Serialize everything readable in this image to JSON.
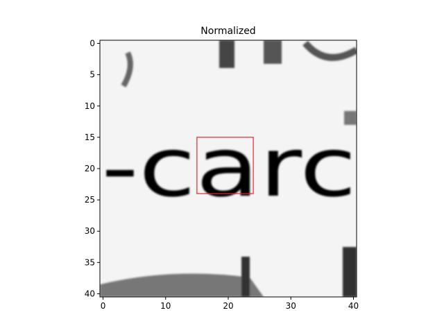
{
  "chart_data": {
    "type": "heatmap",
    "title": "Normalized",
    "colormap": "gray",
    "xlabel": "",
    "ylabel": "",
    "xlim": [
      -0.5,
      40.5
    ],
    "ylim": [
      40.5,
      -0.5
    ],
    "xticks": [
      0,
      10,
      20,
      30,
      40
    ],
    "yticks": [
      0,
      5,
      10,
      15,
      20,
      25,
      30,
      35,
      40
    ],
    "image_content": "-carc",
    "bounding_box": {
      "x": [
        15,
        24
      ],
      "y": [
        15,
        24
      ],
      "color": "#e8262a"
    }
  }
}
